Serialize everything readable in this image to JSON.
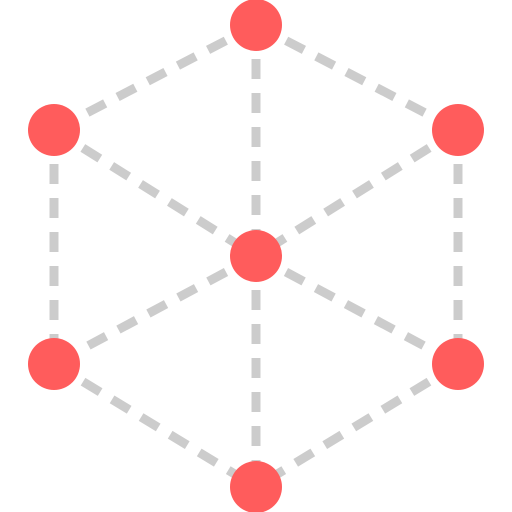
{
  "icon": {
    "semantic_name": "3d-cube-network-icon",
    "node_color": "#FF5C5C",
    "edge_color": "#CCCCCC",
    "nodes": [
      {
        "id": "top"
      },
      {
        "id": "upper-left"
      },
      {
        "id": "upper-right"
      },
      {
        "id": "center"
      },
      {
        "id": "lower-left"
      },
      {
        "id": "lower-right"
      },
      {
        "id": "bottom"
      }
    ],
    "edges": [
      [
        "top",
        "upper-left"
      ],
      [
        "top",
        "upper-right"
      ],
      [
        "top",
        "center"
      ],
      [
        "upper-left",
        "center"
      ],
      [
        "upper-right",
        "center"
      ],
      [
        "upper-left",
        "lower-left"
      ],
      [
        "upper-right",
        "lower-right"
      ],
      [
        "center",
        "lower-left"
      ],
      [
        "center",
        "lower-right"
      ],
      [
        "center",
        "bottom"
      ],
      [
        "lower-left",
        "bottom"
      ],
      [
        "lower-right",
        "bottom"
      ]
    ]
  }
}
